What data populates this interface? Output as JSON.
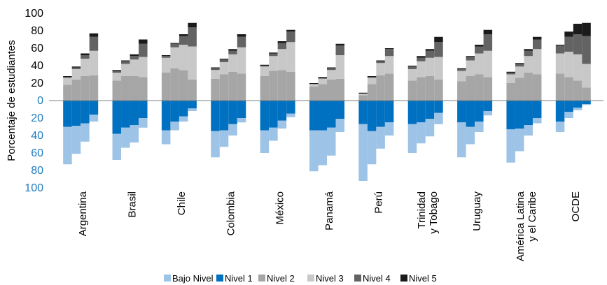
{
  "chart_data": {
    "type": "bar",
    "subtype": "diverging-stacked-bar",
    "ylabel": "Porcentaje de estudiantes",
    "y_ticks": [
      "100",
      "80",
      "60",
      "40",
      "20",
      "0",
      "20",
      "40",
      "60",
      "80",
      "100"
    ],
    "ylim": [
      -100,
      100
    ],
    "grid": false,
    "legend_position": "bottom",
    "categories": [
      {
        "name": "Argentina",
        "label_lines": [
          "Argentina"
        ]
      },
      {
        "name": "Brasil",
        "label_lines": [
          "Brasil"
        ]
      },
      {
        "name": "Chile",
        "label_lines": [
          "Chile"
        ]
      },
      {
        "name": "Colombia",
        "label_lines": [
          "Colombia"
        ]
      },
      {
        "name": "México",
        "label_lines": [
          "México"
        ]
      },
      {
        "name": "Panamá",
        "label_lines": [
          "Panamá"
        ]
      },
      {
        "name": "Perú",
        "label_lines": [
          "Perú"
        ]
      },
      {
        "name": "Trinidad y Tobago",
        "label_lines": [
          "Trinidad",
          "y Tobago"
        ]
      },
      {
        "name": "Uruguay",
        "label_lines": [
          "Uruguay"
        ]
      },
      {
        "name": "América Latina y el Caribe",
        "label_lines": [
          "América Latina",
          "y el Caribe"
        ]
      },
      {
        "name": "OCDE",
        "label_lines": [
          "OCDE"
        ]
      }
    ],
    "series": [
      {
        "name": "Bajo Nivel 1",
        "color": "#9dc3e6",
        "direction": "below"
      },
      {
        "name": "Nivel 1",
        "color": "#0070c0",
        "direction": "below"
      },
      {
        "name": "Nivel 2",
        "color": "#a6a6a6",
        "direction": "above"
      },
      {
        "name": "Nivel 3",
        "color": "#c8c8c8",
        "direction": "above"
      },
      {
        "name": "Nivel 4",
        "color": "#636363",
        "direction": "above"
      },
      {
        "name": "Nivel 5",
        "color": "#1a1a1a",
        "direction": "above"
      }
    ],
    "groups": [
      {
        "category": "Argentina",
        "bars": [
          {
            "bajo_nivel_1": 43,
            "nivel_1": 30,
            "nivel_2": 18,
            "nivel_3": 8,
            "nivel_4": 1,
            "nivel_5": 1
          },
          {
            "bajo_nivel_1": 32,
            "nivel_1": 29,
            "nivel_2": 24,
            "nivel_3": 12,
            "nivel_4": 2,
            "nivel_5": 1
          },
          {
            "bajo_nivel_1": 21,
            "nivel_1": 26,
            "nivel_2": 28,
            "nivel_3": 20,
            "nivel_4": 4,
            "nivel_5": 2
          },
          {
            "bajo_nivel_1": 8,
            "nivel_1": 16,
            "nivel_2": 29,
            "nivel_3": 28,
            "nivel_4": 16,
            "nivel_5": 4
          }
        ]
      },
      {
        "category": "Brasil",
        "bars": [
          {
            "bajo_nivel_1": 30,
            "nivel_1": 38,
            "nivel_2": 23,
            "nivel_3": 9,
            "nivel_4": 2,
            "nivel_5": 1
          },
          {
            "bajo_nivel_1": 23,
            "nivel_1": 31,
            "nivel_2": 28,
            "nivel_3": 14,
            "nivel_4": 3,
            "nivel_5": 1
          },
          {
            "bajo_nivel_1": 20,
            "nivel_1": 28,
            "nivel_2": 28,
            "nivel_3": 19,
            "nivel_4": 4,
            "nivel_5": 2
          },
          {
            "bajo_nivel_1": 11,
            "nivel_1": 20,
            "nivel_2": 27,
            "nivel_3": 23,
            "nivel_4": 15,
            "nivel_5": 5
          }
        ]
      },
      {
        "category": "Chile",
        "bars": [
          {
            "bajo_nivel_1": 16,
            "nivel_1": 34,
            "nivel_2": 32,
            "nivel_3": 17,
            "nivel_4": 2,
            "nivel_5": 1
          },
          {
            "bajo_nivel_1": 10,
            "nivel_1": 24,
            "nivel_2": 37,
            "nivel_3": 24,
            "nivel_4": 4,
            "nivel_5": 1
          },
          {
            "bajo_nivel_1": 6,
            "nivel_1": 18,
            "nivel_2": 35,
            "nivel_3": 29,
            "nivel_4": 10,
            "nivel_5": 2
          },
          {
            "bajo_nivel_1": 3,
            "nivel_1": 9,
            "nivel_2": 24,
            "nivel_3": 38,
            "nivel_4": 22,
            "nivel_5": 5
          }
        ]
      },
      {
        "category": "Colombia",
        "bars": [
          {
            "bajo_nivel_1": 30,
            "nivel_1": 35,
            "nivel_2": 25,
            "nivel_3": 10,
            "nivel_4": 2,
            "nivel_5": 1
          },
          {
            "bajo_nivel_1": 19,
            "nivel_1": 34,
            "nivel_2": 30,
            "nivel_3": 14,
            "nivel_4": 3,
            "nivel_5": 1
          },
          {
            "bajo_nivel_1": 13,
            "nivel_1": 27,
            "nivel_2": 33,
            "nivel_3": 20,
            "nivel_4": 4,
            "nivel_5": 2
          },
          {
            "bajo_nivel_1": 5,
            "nivel_1": 20,
            "nivel_2": 31,
            "nivel_3": 30,
            "nivel_4": 12,
            "nivel_5": 3
          }
        ]
      },
      {
        "category": "México",
        "bars": [
          {
            "bajo_nivel_1": 26,
            "nivel_1": 34,
            "nivel_2": 28,
            "nivel_3": 11,
            "nivel_4": 1,
            "nivel_5": 1
          },
          {
            "bajo_nivel_1": 15,
            "nivel_1": 31,
            "nivel_2": 34,
            "nivel_3": 17,
            "nivel_4": 3,
            "nivel_5": 1
          },
          {
            "bajo_nivel_1": 9,
            "nivel_1": 23,
            "nivel_2": 35,
            "nivel_3": 24,
            "nivel_4": 7,
            "nivel_5": 2
          },
          {
            "bajo_nivel_1": 4,
            "nivel_1": 15,
            "nivel_2": 33,
            "nivel_3": 34,
            "nivel_4": 12,
            "nivel_5": 2
          }
        ]
      },
      {
        "category": "Panamá",
        "bars": [
          {
            "bajo_nivel_1": 47,
            "nivel_1": 34,
            "nivel_2": 16,
            "nivel_3": 3,
            "nivel_4": 0,
            "nivel_5": 1
          },
          {
            "bajo_nivel_1": 40,
            "nivel_1": 34,
            "nivel_2": 19,
            "nivel_3": 6,
            "nivel_4": 1,
            "nivel_5": 1
          },
          {
            "bajo_nivel_1": 32,
            "nivel_1": 31,
            "nivel_2": 24,
            "nivel_3": 11,
            "nivel_4": 2,
            "nivel_5": 1
          },
          {
            "bajo_nivel_1": 15,
            "nivel_1": 21,
            "nivel_2": 25,
            "nivel_3": 27,
            "nivel_4": 11,
            "nivel_5": 2
          }
        ]
      },
      {
        "category": "Perú",
        "bars": [
          {
            "bajo_nivel_1": 65,
            "nivel_1": 27,
            "nivel_2": 6,
            "nivel_3": 2,
            "nivel_4": 0,
            "nivel_5": 1
          },
          {
            "bajo_nivel_1": 38,
            "nivel_1": 35,
            "nivel_2": 19,
            "nivel_3": 7,
            "nivel_4": 1,
            "nivel_5": 1
          },
          {
            "bajo_nivel_1": 25,
            "nivel_1": 30,
            "nivel_2": 29,
            "nivel_3": 14,
            "nivel_4": 2,
            "nivel_5": 1
          },
          {
            "bajo_nivel_1": 15,
            "nivel_1": 25,
            "nivel_2": 31,
            "nivel_3": 20,
            "nivel_4": 8,
            "nivel_5": 1
          }
        ]
      },
      {
        "category": "Trinidad y Tobago",
        "bars": [
          {
            "bajo_nivel_1": 33,
            "nivel_1": 27,
            "nivel_2": 23,
            "nivel_3": 13,
            "nivel_4": 3,
            "nivel_5": 1
          },
          {
            "bajo_nivel_1": 24,
            "nivel_1": 25,
            "nivel_2": 27,
            "nivel_3": 18,
            "nivel_4": 4,
            "nivel_5": 2
          },
          {
            "bajo_nivel_1": 20,
            "nivel_1": 21,
            "nivel_2": 28,
            "nivel_3": 21,
            "nivel_4": 8,
            "nivel_5": 2
          },
          {
            "bajo_nivel_1": 13,
            "nivel_1": 14,
            "nivel_2": 24,
            "nivel_3": 26,
            "nivel_4": 17,
            "nivel_5": 6
          }
        ]
      },
      {
        "category": "Uruguay",
        "bars": [
          {
            "bajo_nivel_1": 40,
            "nivel_1": 25,
            "nivel_2": 22,
            "nivel_3": 12,
            "nivel_4": 2,
            "nivel_5": 1
          },
          {
            "bajo_nivel_1": 20,
            "nivel_1": 30,
            "nivel_2": 28,
            "nivel_3": 18,
            "nivel_4": 4,
            "nivel_5": 1
          },
          {
            "bajo_nivel_1": 12,
            "nivel_1": 24,
            "nivel_2": 30,
            "nivel_3": 24,
            "nivel_4": 8,
            "nivel_5": 2
          },
          {
            "bajo_nivel_1": 5,
            "nivel_1": 12,
            "nivel_2": 27,
            "nivel_3": 30,
            "nivel_4": 19,
            "nivel_5": 5
          }
        ]
      },
      {
        "category": "América Latina y el Caribe",
        "bars": [
          {
            "bajo_nivel_1": 38,
            "nivel_1": 33,
            "nivel_2": 20,
            "nivel_3": 10,
            "nivel_4": 2,
            "nivel_5": 1
          },
          {
            "bajo_nivel_1": 26,
            "nivel_1": 32,
            "nivel_2": 26,
            "nivel_3": 13,
            "nivel_4": 3,
            "nivel_5": 1
          },
          {
            "bajo_nivel_1": 12,
            "nivel_1": 28,
            "nivel_2": 32,
            "nivel_3": 19,
            "nivel_4": 6,
            "nivel_5": 2
          },
          {
            "bajo_nivel_1": 6,
            "nivel_1": 20,
            "nivel_2": 30,
            "nivel_3": 29,
            "nivel_4": 11,
            "nivel_5": 3
          }
        ]
      },
      {
        "category": "OCDE",
        "bars": [
          {
            "bajo_nivel_1": 12,
            "nivel_1": 24,
            "nivel_2": 31,
            "nivel_3": 23,
            "nivel_4": 9,
            "nivel_5": 1
          },
          {
            "bajo_nivel_1": 7,
            "nivel_1": 13,
            "nivel_2": 27,
            "nivel_3": 29,
            "nivel_4": 17,
            "nivel_5": 6
          },
          {
            "bajo_nivel_1": 3,
            "nivel_1": 8,
            "nivel_2": 23,
            "nivel_3": 30,
            "nivel_4": 23,
            "nivel_5": 12
          },
          {
            "bajo_nivel_1": 1,
            "nivel_1": 4,
            "nivel_2": 15,
            "nivel_3": 27,
            "nivel_4": 32,
            "nivel_5": 15
          }
        ]
      }
    ]
  }
}
